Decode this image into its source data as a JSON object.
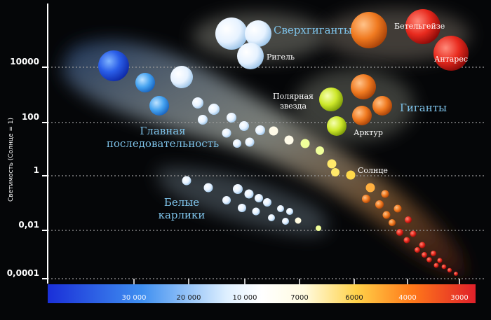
{
  "axis": {
    "y_title": "Светимость (Солнце = 1)",
    "y_ticks": [
      "10000",
      "100",
      "1",
      "0,01",
      "0,0001"
    ],
    "x_ticks": [
      "30 000",
      "20 000",
      "10 000",
      "7000",
      "6000",
      "4000",
      "3000"
    ]
  },
  "groups": {
    "supergiants": "Сверхгиганты",
    "giants": "Гиганты",
    "main_sequence_line1": "Главная",
    "main_sequence_line2": "последовательность",
    "white_dwarfs_line1": "Белые",
    "white_dwarfs_line2": "карлики"
  },
  "stars": {
    "rigel": "Ригель",
    "betelgeuse": "Бетельгейзе",
    "antares": "Антарес",
    "polaris_line1": "Полярная",
    "polaris_line2": "звезда",
    "arcturus": "Арктур",
    "sun": "Солнце"
  },
  "colors": {
    "hot": "#1a3fe0",
    "cool": "#e0202a",
    "label_blue": "#7ec3ea"
  }
}
